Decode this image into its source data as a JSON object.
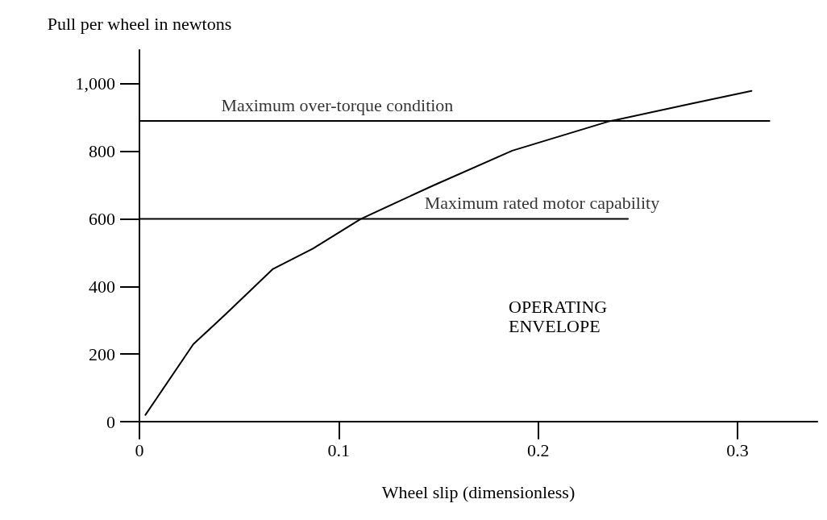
{
  "chart_data": {
    "type": "line",
    "ylabel": "Pull per wheel in newtons",
    "xlabel": "Wheel slip (dimensionless)",
    "xlim": [
      0,
      0.34
    ],
    "xticks": [
      0,
      0.1,
      0.2,
      0.3
    ],
    "ylim": [
      0,
      1100
    ],
    "yticks": [
      0,
      200,
      400,
      600,
      800,
      {
        "value": 1000,
        "label": "1,000"
      }
    ],
    "grid": false,
    "marker": "none",
    "line_style": "solid",
    "series": [
      {
        "color": "#000000",
        "x": [
          0.003,
          0.027,
          0.043,
          0.067,
          0.087,
          0.111,
          0.147,
          0.187,
          0.235,
          0.276,
          0.307
        ],
        "values": [
          20,
          229,
          317,
          452,
          512,
          600,
          698,
          802,
          888,
          940,
          979
        ]
      },
      {
        "color": "#000000",
        "x": [
          0,
          0.316
        ],
        "values": [
          890,
          890
        ]
      },
      {
        "color": "#000000",
        "x": [
          0,
          0.245
        ],
        "values": [
          600,
          600
        ]
      }
    ],
    "annotations": [
      {
        "text": "Maximum over-torque condition",
        "x": 0.041,
        "y": 890
      },
      {
        "text": "Maximum rated motor capability",
        "x": 0.143,
        "y": 600
      },
      "OPERATING\nENVELOPE"
    ]
  }
}
